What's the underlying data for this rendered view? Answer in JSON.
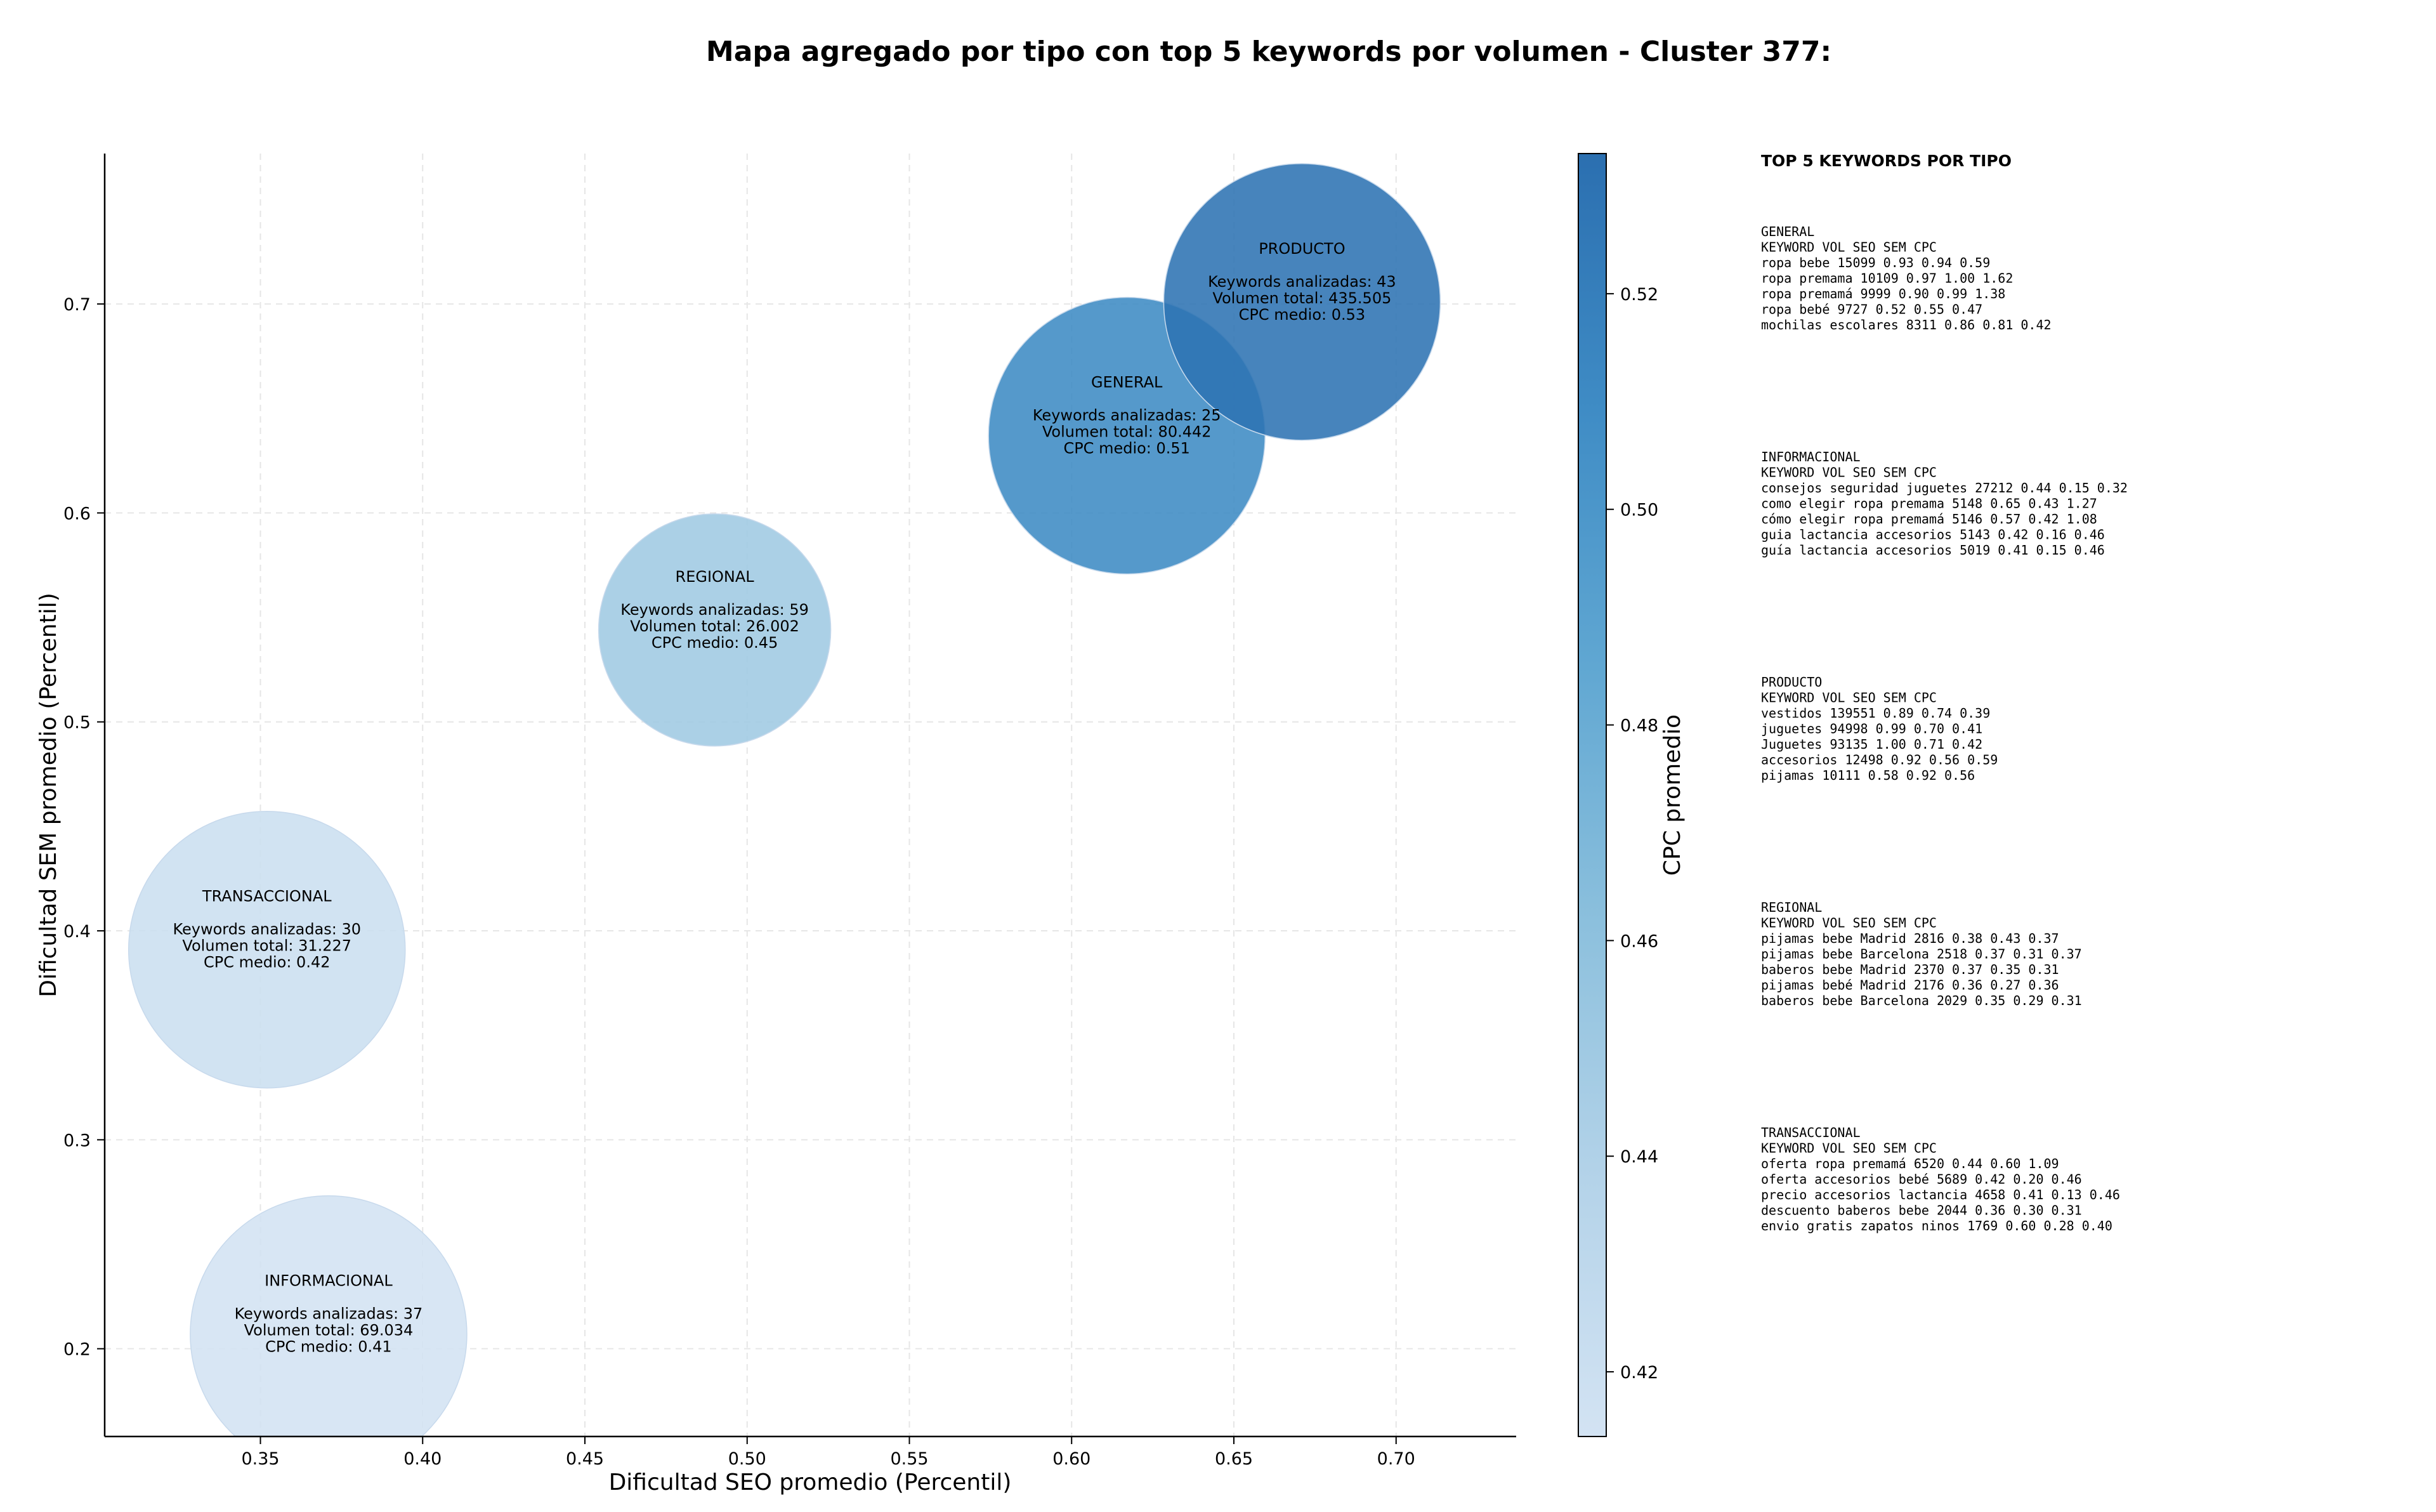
{
  "chart_data": {
    "type": "scatter",
    "variant": "bubble",
    "title": "Mapa agregado por tipo con top 5 keywords por volumen - Cluster 377:",
    "xlabel": "Dificultad SEO promedio (Percentil)",
    "ylabel": "Dificultad SEM promedio (Percentil)",
    "xlim": [
      0.302,
      0.737
    ],
    "ylim": [
      0.158,
      0.772
    ],
    "xticks": [
      0.35,
      0.4,
      0.45,
      0.5,
      0.55,
      0.6,
      0.65,
      0.7
    ],
    "yticks": [
      0.2,
      0.3,
      0.4,
      0.5,
      0.6,
      0.7
    ],
    "grid": true,
    "colorbar": {
      "label": "CPC promedio",
      "range": [
        0.414,
        0.533
      ],
      "ticks": [
        0.42,
        0.44,
        0.46,
        0.48,
        0.5,
        0.52
      ],
      "colors": [
        "#cfe1f2",
        "#9ecae1",
        "#6baed6",
        "#4292c6",
        "#2f7bbd",
        "#2b6fb0"
      ]
    },
    "points": [
      {
        "label": "INFORMACIONAL",
        "x": 0.371,
        "y": 0.207,
        "cpc": 0.41,
        "keywords": 37,
        "volume": 69034,
        "lines": [
          "Keywords analizadas: 37",
          "Volumen total: 69.034",
          "CPC medio: 0.41"
        ]
      },
      {
        "label": "TRANSACCIONAL",
        "x": 0.352,
        "y": 0.391,
        "cpc": 0.42,
        "keywords": 30,
        "volume": 31227,
        "lines": [
          "Keywords analizadas: 30",
          "Volumen total: 31.227",
          "CPC medio: 0.42"
        ]
      },
      {
        "label": "REGIONAL",
        "x": 0.49,
        "y": 0.544,
        "cpc": 0.45,
        "keywords": 59,
        "volume": 26002,
        "lines": [
          "Keywords analizadas: 59",
          "Volumen total: 26.002",
          "CPC medio: 0.45"
        ]
      },
      {
        "label": "GENERAL",
        "x": 0.617,
        "y": 0.637,
        "cpc": 0.51,
        "keywords": 25,
        "volume": 80442,
        "lines": [
          "Keywords analizadas: 25",
          "Volumen total: 80.442",
          "CPC medio: 0.51"
        ]
      },
      {
        "label": "PRODUCTO",
        "x": 0.671,
        "y": 0.701,
        "cpc": 0.53,
        "keywords": 43,
        "volume": 435505,
        "lines": [
          "Keywords analizadas: 43",
          "Volumen total: 435.505",
          "CPC medio: 0.53"
        ]
      }
    ]
  },
  "panel": {
    "heading": "TOP 5 KEYWORDS POR TIPO",
    "header": {
      "keyword": "KEYWORD",
      "vol": "VOL",
      "seo": "SEO",
      "sem": "SEM",
      "cpc": "CPC"
    },
    "groups": [
      {
        "name": "GENERAL",
        "rows": [
          {
            "keyword": "ropa bebe",
            "vol": "15099",
            "seo": "0.93",
            "sem": "0.94",
            "cpc": "0.59"
          },
          {
            "keyword": "ropa premama",
            "vol": "10109",
            "seo": "0.97",
            "sem": "1.00",
            "cpc": "1.62"
          },
          {
            "keyword": "ropa premamá",
            "vol": "9999",
            "seo": "0.90",
            "sem": "0.99",
            "cpc": "1.38"
          },
          {
            "keyword": "ropa bebé",
            "vol": "9727",
            "seo": "0.52",
            "sem": "0.55",
            "cpc": "0.47"
          },
          {
            "keyword": "mochilas escolares",
            "vol": "8311",
            "seo": "0.86",
            "sem": "0.81",
            "cpc": "0.42"
          }
        ]
      },
      {
        "name": "INFORMACIONAL",
        "rows": [
          {
            "keyword": "consejos seguridad juguetes",
            "vol": "27212",
            "seo": "0.44",
            "sem": "0.15",
            "cpc": "0.32"
          },
          {
            "keyword": "como elegir ropa premama",
            "vol": "5148",
            "seo": "0.65",
            "sem": "0.43",
            "cpc": "1.27"
          },
          {
            "keyword": "cómo elegir ropa premamá",
            "vol": "5146",
            "seo": "0.57",
            "sem": "0.42",
            "cpc": "1.08"
          },
          {
            "keyword": "guia lactancia accesorios",
            "vol": "5143",
            "seo": "0.42",
            "sem": "0.16",
            "cpc": "0.46"
          },
          {
            "keyword": "guía lactancia accesorios",
            "vol": "5019",
            "seo": "0.41",
            "sem": "0.15",
            "cpc": "0.46"
          }
        ]
      },
      {
        "name": "PRODUCTO",
        "rows": [
          {
            "keyword": "vestidos",
            "vol": "139551",
            "seo": "0.89",
            "sem": "0.74",
            "cpc": "0.39"
          },
          {
            "keyword": "juguetes",
            "vol": "94998",
            "seo": "0.99",
            "sem": "0.70",
            "cpc": "0.41"
          },
          {
            "keyword": "Juguetes",
            "vol": "93135",
            "seo": "1.00",
            "sem": "0.71",
            "cpc": "0.42"
          },
          {
            "keyword": "accesorios",
            "vol": "12498",
            "seo": "0.92",
            "sem": "0.56",
            "cpc": "0.59"
          },
          {
            "keyword": "pijamas",
            "vol": "10111",
            "seo": "0.58",
            "sem": "0.92",
            "cpc": "0.56"
          }
        ]
      },
      {
        "name": "REGIONAL",
        "rows": [
          {
            "keyword": "pijamas bebe Madrid",
            "vol": "2816",
            "seo": "0.38",
            "sem": "0.43",
            "cpc": "0.37"
          },
          {
            "keyword": "pijamas bebe Barcelona",
            "vol": "2518",
            "seo": "0.37",
            "sem": "0.31",
            "cpc": "0.37"
          },
          {
            "keyword": "baberos bebe Madrid",
            "vol": "2370",
            "seo": "0.37",
            "sem": "0.35",
            "cpc": "0.31"
          },
          {
            "keyword": "pijamas bebé Madrid",
            "vol": "2176",
            "seo": "0.36",
            "sem": "0.27",
            "cpc": "0.36"
          },
          {
            "keyword": "baberos bebe Barcelona",
            "vol": "2029",
            "seo": "0.35",
            "sem": "0.29",
            "cpc": "0.31"
          }
        ]
      },
      {
        "name": "TRANSACCIONAL",
        "rows": [
          {
            "keyword": "oferta ropa premamá",
            "vol": "6520",
            "seo": "0.44",
            "sem": "0.60",
            "cpc": "1.09"
          },
          {
            "keyword": "oferta accesorios bebé",
            "vol": "5689",
            "seo": "0.42",
            "sem": "0.20",
            "cpc": "0.46"
          },
          {
            "keyword": "precio accesorios lactancia",
            "vol": "4658",
            "seo": "0.41",
            "sem": "0.13",
            "cpc": "0.46"
          },
          {
            "keyword": "descuento baberos bebe",
            "vol": "2044",
            "seo": "0.36",
            "sem": "0.30",
            "cpc": "0.31"
          },
          {
            "keyword": "envio gratis zapatos ninos",
            "vol": "1769",
            "seo": "0.60",
            "sem": "0.28",
            "cpc": "0.40"
          }
        ]
      }
    ]
  }
}
